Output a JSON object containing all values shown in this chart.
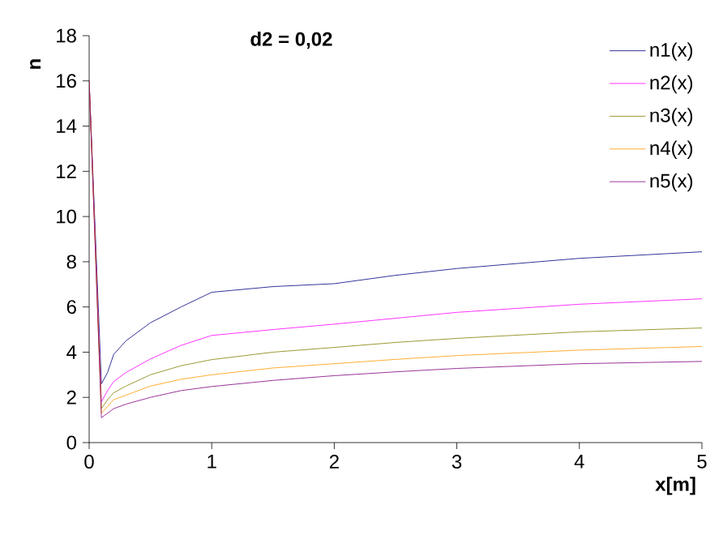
{
  "chart_data": {
    "type": "line",
    "title": "d2 = 0,02",
    "xlabel": "x[m]",
    "ylabel": "n",
    "x": [
      0,
      0.1,
      0.15,
      0.2,
      0.3,
      0.5,
      0.75,
      1,
      1.5,
      2,
      2.5,
      3,
      4,
      5
    ],
    "series": [
      {
        "name": "n1(x)",
        "color": "#000080",
        "values": [
          16,
          2.6,
          3.1,
          3.9,
          4.5,
          5.3,
          6.0,
          6.65,
          6.9,
          7.03,
          7.4,
          7.7,
          8.15,
          8.44
        ]
      },
      {
        "name": "n2(x)",
        "color": "#ff00ff",
        "values": [
          16,
          1.8,
          2.3,
          2.7,
          3.1,
          3.7,
          4.3,
          4.74,
          5.0,
          5.24,
          5.5,
          5.76,
          6.12,
          6.36
        ]
      },
      {
        "name": "n3(x)",
        "color": "#808000",
        "values": [
          16,
          1.5,
          1.9,
          2.2,
          2.5,
          3.0,
          3.4,
          3.67,
          4.0,
          4.21,
          4.43,
          4.61,
          4.9,
          5.07
        ]
      },
      {
        "name": "n4(x)",
        "color": "#ff9900",
        "values": [
          16,
          1.3,
          1.6,
          1.9,
          2.1,
          2.5,
          2.8,
          3.0,
          3.3,
          3.49,
          3.68,
          3.85,
          4.09,
          4.25
        ]
      },
      {
        "name": "n5(x)",
        "color": "#800080",
        "values": [
          16,
          1.1,
          1.3,
          1.5,
          1.7,
          2.0,
          2.3,
          2.48,
          2.75,
          2.96,
          3.13,
          3.28,
          3.49,
          3.59
        ]
      }
    ],
    "xlim": [
      0,
      5
    ],
    "ylim": [
      0,
      18
    ],
    "xticks": [
      0,
      1,
      2,
      3,
      4,
      5
    ],
    "yticks": [
      0,
      2,
      4,
      6,
      8,
      10,
      12,
      14,
      16,
      18
    ],
    "legend": "top right",
    "grid": false,
    "marker": "none",
    "line_style": "solid"
  }
}
